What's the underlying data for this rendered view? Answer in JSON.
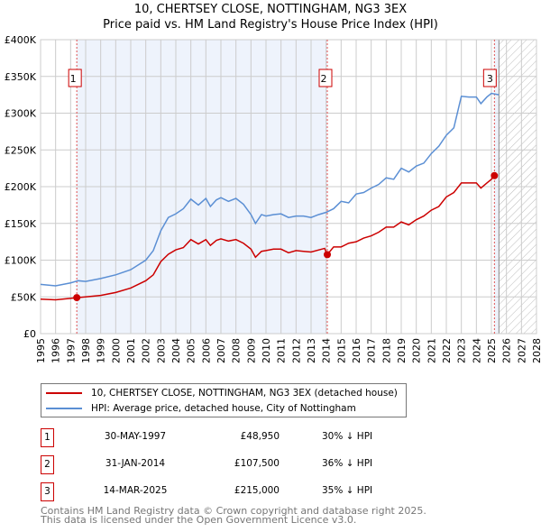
{
  "title": "10, CHERTSEY CLOSE, NOTTINGHAM, NG3 3EX",
  "subtitle": "Price paid vs. HM Land Registry's House Price Index (HPI)",
  "colors": {
    "property": "#cc0000",
    "hpi": "#5b8fd4",
    "shade": "#eef3fc"
  },
  "chart_data": {
    "type": "line",
    "title": "10, CHERTSEY CLOSE, NOTTINGHAM, NG3 3EX",
    "xlim": [
      1995,
      2028
    ],
    "ylim": [
      0,
      400000
    ],
    "x_ticks": [
      "1995",
      "1996",
      "1997",
      "1998",
      "1999",
      "2000",
      "2001",
      "2002",
      "2003",
      "2004",
      "2005",
      "2006",
      "2007",
      "2008",
      "2009",
      "2010",
      "2011",
      "2012",
      "2013",
      "2014",
      "2015",
      "2016",
      "2017",
      "2018",
      "2019",
      "2020",
      "2021",
      "2022",
      "2023",
      "2024",
      "2025",
      "2026",
      "2027",
      "2028"
    ],
    "y_ticks": [
      {
        "v": 0,
        "label": "£0"
      },
      {
        "v": 50000,
        "label": "£50K"
      },
      {
        "v": 100000,
        "label": "£100K"
      },
      {
        "v": 150000,
        "label": "£150K"
      },
      {
        "v": 200000,
        "label": "£200K"
      },
      {
        "v": 250000,
        "label": "£250K"
      },
      {
        "v": 300000,
        "label": "£300K"
      },
      {
        "v": 350000,
        "label": "£350K"
      },
      {
        "v": 400000,
        "label": "£400K"
      }
    ],
    "grid": true,
    "shaded_ranges": [
      [
        1997.41,
        2014.08
      ],
      [
        2025.2,
        2025.5
      ]
    ],
    "forecast_hatch_from": 2025.5,
    "series": [
      {
        "name": "10, CHERTSEY CLOSE, NOTTINGHAM, NG3 3EX (detached house)",
        "color": "#cc0000",
        "x": [
          1995,
          1996,
          1997,
          1997.41,
          1998,
          1999,
          2000,
          2001,
          2002,
          2002.5,
          2003,
          2003.5,
          2004,
          2004.5,
          2005,
          2005.5,
          2006,
          2006.3,
          2006.7,
          2007,
          2007.5,
          2008,
          2008.5,
          2009,
          2009.3,
          2009.7,
          2010,
          2010.5,
          2011,
          2011.5,
          2012,
          2012.5,
          2013,
          2013.9,
          2014.08,
          2014.5,
          2015,
          2015.5,
          2016,
          2016.5,
          2017,
          2017.5,
          2018,
          2018.5,
          2019,
          2019.5,
          2020,
          2020.5,
          2021,
          2021.5,
          2022,
          2022.5,
          2023,
          2023.5,
          2024,
          2024.3,
          2024.7,
          2025,
          2025.2
        ],
        "y": [
          47000,
          46000,
          48000,
          48950,
          50000,
          52000,
          56000,
          62000,
          72000,
          80000,
          98000,
          108000,
          114000,
          117000,
          128000,
          122000,
          128000,
          120000,
          127000,
          129000,
          126000,
          128000,
          123000,
          115000,
          104000,
          112000,
          113000,
          115000,
          115000,
          110000,
          113000,
          112000,
          111000,
          116000,
          107500,
          118000,
          118000,
          123000,
          125000,
          130000,
          133000,
          138000,
          145000,
          145000,
          152000,
          148000,
          155000,
          160000,
          168000,
          173000,
          186000,
          192000,
          205000,
          205000,
          205000,
          198000,
          205000,
          210000,
          215000
        ]
      },
      {
        "name": "HPI: Average price, detached house, City of Nottingham",
        "color": "#5b8fd4",
        "x": [
          1995,
          1996,
          1997,
          1997.5,
          1998,
          1999,
          2000,
          2001,
          2002,
          2002.5,
          2003,
          2003.5,
          2004,
          2004.5,
          2005,
          2005.5,
          2006,
          2006.3,
          2006.7,
          2007,
          2007.5,
          2008,
          2008.5,
          2009,
          2009.3,
          2009.7,
          2010,
          2010.5,
          2011,
          2011.5,
          2012,
          2012.5,
          2013,
          2013.5,
          2014,
          2014.5,
          2015,
          2015.5,
          2016,
          2016.5,
          2017,
          2017.5,
          2018,
          2018.5,
          2019,
          2019.5,
          2020,
          2020.5,
          2021,
          2021.5,
          2022,
          2022.5,
          2023,
          2023.5,
          2024,
          2024.3,
          2024.7,
          2025,
          2025.5
        ],
        "y": [
          67000,
          65000,
          69000,
          72000,
          71000,
          75000,
          80000,
          87000,
          100000,
          113000,
          140000,
          158000,
          163000,
          170000,
          183000,
          175000,
          184000,
          173000,
          182000,
          185000,
          180000,
          184000,
          176000,
          162000,
          150000,
          162000,
          160000,
          162000,
          163000,
          158000,
          160000,
          160000,
          158000,
          162000,
          165000,
          170000,
          180000,
          178000,
          190000,
          192000,
          198000,
          203000,
          212000,
          210000,
          225000,
          220000,
          228000,
          232000,
          245000,
          255000,
          270000,
          280000,
          323000,
          322000,
          322000,
          313000,
          322000,
          327000,
          325000
        ]
      }
    ],
    "sales": [
      {
        "n": "1",
        "x": 1997.41,
        "y": 48950
      },
      {
        "n": "2",
        "x": 2014.08,
        "y": 107500
      },
      {
        "n": "3",
        "x": 2025.2,
        "y": 215000
      }
    ]
  },
  "legend": {
    "property": "10, CHERTSEY CLOSE, NOTTINGHAM, NG3 3EX (detached house)",
    "hpi": "HPI: Average price, detached house, City of Nottingham"
  },
  "transactions": [
    {
      "n": "1",
      "date": "30-MAY-1997",
      "price": "£48,950",
      "hpi": "30% ↓ HPI"
    },
    {
      "n": "2",
      "date": "31-JAN-2014",
      "price": "£107,500",
      "hpi": "36% ↓ HPI"
    },
    {
      "n": "3",
      "date": "14-MAR-2025",
      "price": "£215,000",
      "hpi": "35% ↓ HPI"
    }
  ],
  "footer": {
    "line1": "Contains HM Land Registry data © Crown copyright and database right 2025.",
    "line2": "This data is licensed under the Open Government Licence v3.0."
  }
}
